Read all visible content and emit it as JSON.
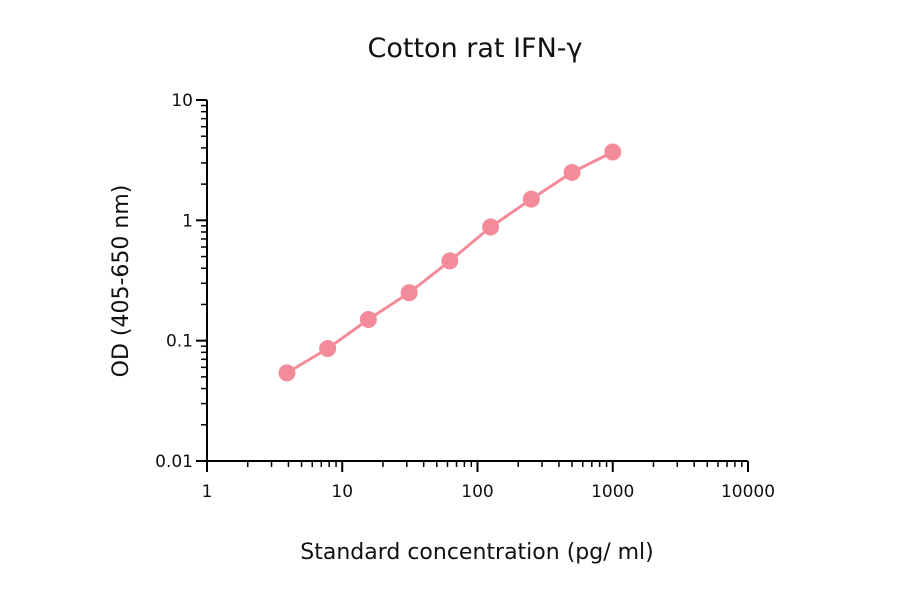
{
  "chart_data": {
    "type": "line",
    "title": "Cotton rat IFN-γ",
    "xlabel": "Standard concentration (pg/ ml)",
    "ylabel": "OD (405-650 nm)",
    "x_scale": "log",
    "y_scale": "log",
    "xlim": [
      1,
      10000
    ],
    "ylim": [
      0.01,
      10
    ],
    "x_ticks": [
      {
        "value": 1,
        "label": "1"
      },
      {
        "value": 10,
        "label": "10"
      },
      {
        "value": 100,
        "label": "100"
      },
      {
        "value": 1000,
        "label": "1000"
      },
      {
        "value": 10000,
        "label": "10000"
      }
    ],
    "y_ticks": [
      {
        "value": 0.01,
        "label": "0.01"
      },
      {
        "value": 0.1,
        "label": "0.1"
      },
      {
        "value": 1,
        "label": "1"
      },
      {
        "value": 10,
        "label": "10"
      }
    ],
    "grid": false,
    "legend": "none",
    "series_color": "#f48b9b",
    "series": [
      {
        "x": [
          3.9,
          7.8,
          15.6,
          31.25,
          62.5,
          125,
          250,
          500,
          1000
        ],
        "y": [
          0.054,
          0.086,
          0.15,
          0.25,
          0.46,
          0.88,
          1.5,
          2.5,
          3.7
        ]
      }
    ]
  }
}
